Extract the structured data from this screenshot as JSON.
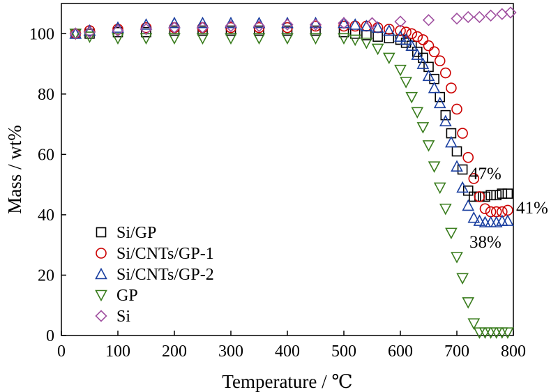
{
  "chart_data": {
    "type": "scatter",
    "xlabel": "Temperature / ℃",
    "ylabel": "Mass / wt%",
    "xlim": [
      0,
      800
    ],
    "ylim": [
      0,
      110
    ],
    "xticks": [
      0,
      100,
      200,
      300,
      400,
      500,
      600,
      700,
      800
    ],
    "yticks": [
      0,
      20,
      40,
      60,
      80,
      100
    ],
    "grid": false,
    "legend_position": "bottom-left",
    "series": [
      {
        "name": "Si/GP",
        "marker": "square",
        "color": "#000000",
        "x": [
          25,
          50,
          100,
          150,
          200,
          250,
          300,
          350,
          400,
          450,
          500,
          520,
          540,
          560,
          580,
          600,
          610,
          620,
          630,
          640,
          650,
          660,
          670,
          680,
          690,
          700,
          710,
          720,
          730,
          740,
          750,
          760,
          770,
          780,
          790
        ],
        "y": [
          100,
          100,
          100.5,
          100.5,
          101,
          101,
          101,
          101,
          101,
          101,
          100.5,
          100,
          99.5,
          99,
          98.5,
          98,
          97,
          96,
          94,
          92,
          89,
          85,
          79,
          73,
          67,
          61,
          55,
          48,
          46,
          46,
          46,
          46.5,
          46.5,
          47,
          47
        ]
      },
      {
        "name": "Si/CNTs/GP-1",
        "marker": "circle",
        "color": "#cc0000",
        "x": [
          25,
          50,
          100,
          150,
          200,
          250,
          300,
          350,
          400,
          450,
          500,
          520,
          540,
          560,
          580,
          600,
          610,
          620,
          630,
          640,
          650,
          660,
          670,
          680,
          690,
          700,
          710,
          720,
          730,
          740,
          750,
          760,
          770,
          780,
          790
        ],
        "y": [
          100,
          101,
          101.5,
          102,
          102,
          102,
          102,
          102,
          102,
          102.5,
          102.5,
          102.5,
          102.5,
          102,
          101.5,
          101,
          100.5,
          100,
          99,
          98,
          96,
          94,
          91,
          87,
          82,
          75,
          67,
          59,
          52,
          46,
          42,
          41,
          41,
          41,
          41.5
        ]
      },
      {
        "name": "Si/CNTs/GP-2",
        "marker": "triangle-up",
        "color": "#1a3fa0",
        "x": [
          25,
          50,
          100,
          150,
          200,
          250,
          300,
          350,
          400,
          450,
          500,
          520,
          540,
          560,
          580,
          600,
          610,
          620,
          630,
          640,
          650,
          660,
          670,
          680,
          690,
          700,
          710,
          720,
          730,
          740,
          750,
          760,
          770,
          780,
          790
        ],
        "y": [
          100,
          101,
          102,
          103,
          103.5,
          103.5,
          103.5,
          103.5,
          103.5,
          103.5,
          103.5,
          103,
          102.5,
          102,
          101,
          99,
          98,
          96,
          93,
          90,
          86,
          82,
          77,
          71,
          64,
          56,
          49,
          43,
          39,
          38,
          37.5,
          37.5,
          37.5,
          38,
          38
        ]
      },
      {
        "name": "GP",
        "marker": "triangle-down",
        "color": "#3a7d1e",
        "x": [
          25,
          50,
          100,
          150,
          200,
          250,
          300,
          350,
          400,
          450,
          500,
          520,
          540,
          560,
          580,
          600,
          610,
          620,
          630,
          640,
          650,
          660,
          670,
          680,
          690,
          700,
          710,
          720,
          730,
          740,
          750,
          760,
          770,
          780,
          790
        ],
        "y": [
          100,
          99,
          98.5,
          98.5,
          98.5,
          98.5,
          98.5,
          98.5,
          98.5,
          98.5,
          98.5,
          98,
          97,
          95,
          92,
          88,
          84,
          79,
          74,
          69,
          63,
          56,
          49,
          42,
          34,
          26,
          19,
          11,
          4,
          1,
          1,
          1,
          1,
          1,
          1
        ]
      },
      {
        "name": "Si",
        "marker": "diamond",
        "color": "#a050a0",
        "x": [
          25,
          50,
          100,
          150,
          200,
          250,
          300,
          350,
          400,
          450,
          500,
          550,
          600,
          650,
          700,
          720,
          740,
          760,
          780,
          795
        ],
        "y": [
          100,
          100.5,
          101,
          101.5,
          102,
          102,
          102.5,
          102.5,
          103,
          103,
          103.5,
          103.5,
          104,
          104.5,
          105,
          105.5,
          105.5,
          106,
          106.5,
          107
        ]
      }
    ],
    "annotations": [
      {
        "text": "47%",
        "x": 735,
        "y": 51
      },
      {
        "text": "41%",
        "x": 810,
        "y": 41
      },
      {
        "text": "38%",
        "x": 735,
        "y": 29
      }
    ]
  }
}
